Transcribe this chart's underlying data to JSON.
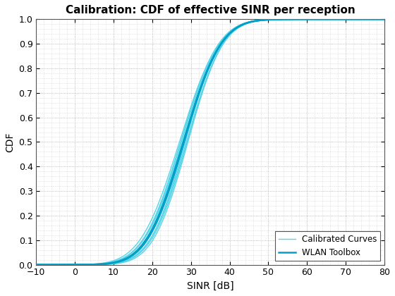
{
  "title": "Calibration: CDF of effective SINR per reception",
  "xlabel": "SINR [dB]",
  "ylabel": "CDF",
  "xlim": [
    -10,
    80
  ],
  "ylim": [
    0,
    1
  ],
  "xticks": [
    -10,
    0,
    10,
    20,
    30,
    40,
    50,
    60,
    70,
    80
  ],
  "yticks": [
    0,
    0.1,
    0.2,
    0.3,
    0.4,
    0.5,
    0.6,
    0.7,
    0.8,
    0.9,
    1.0
  ],
  "calibrated_color": "#56D4E8",
  "wlan_color": "#00A0C8",
  "calibrated_linewidth": 1.0,
  "wlan_linewidth": 1.8,
  "background_color": "#FFFFFF",
  "grid_color": "#AAAAAA",
  "legend_labels": [
    "Calibrated Curves",
    "WLAN Toolbox"
  ],
  "title_fontsize": 11,
  "label_fontsize": 10,
  "calibrated_means": [
    28.0,
    27.5,
    28.5,
    27.0,
    29.0,
    28.2,
    27.8,
    29.2,
    28.8,
    27.3
  ],
  "calibrated_stds": [
    7.5,
    7.8,
    7.2,
    8.0,
    7.3,
    7.6,
    7.9,
    7.1,
    7.4,
    7.7
  ],
  "wlan_means": [
    28.2,
    28.0
  ],
  "wlan_stds": [
    7.5,
    7.6
  ]
}
